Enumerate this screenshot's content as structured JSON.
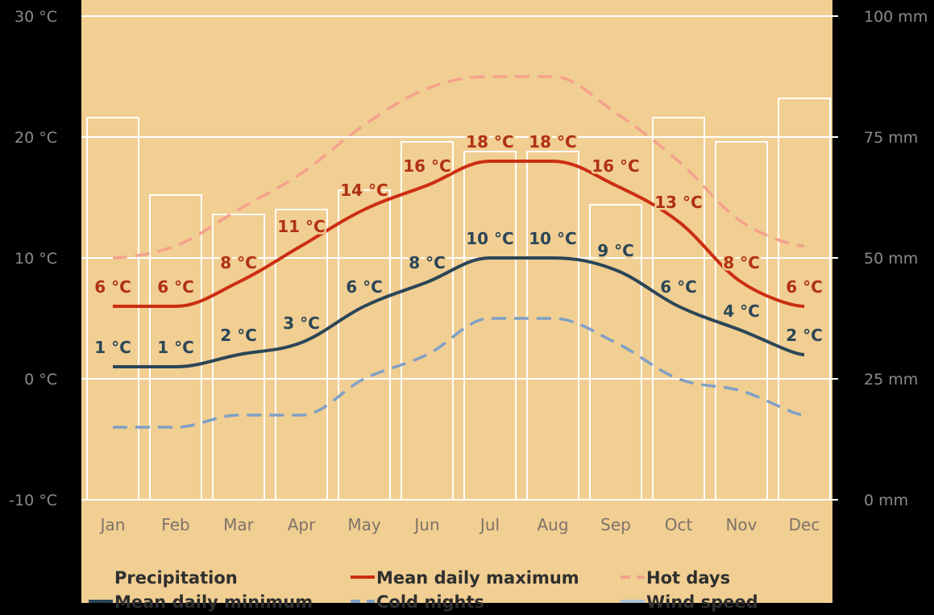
{
  "chart_data": {
    "type": "line",
    "categories": [
      "Jan",
      "Feb",
      "Mar",
      "Apr",
      "May",
      "Jun",
      "Jul",
      "Aug",
      "Sep",
      "Oct",
      "Nov",
      "Dec"
    ],
    "y_left": {
      "ylim": [
        -10,
        30
      ],
      "ticks": [
        -10,
        0,
        10,
        20,
        30
      ],
      "unit": "°C"
    },
    "y_right": {
      "ylim": [
        0,
        100
      ],
      "ticks": [
        0,
        25,
        50,
        75,
        100
      ],
      "unit": "mm"
    },
    "precipitation": {
      "name": "Precipitation",
      "values": [
        79,
        63,
        59,
        60,
        64,
        74,
        72,
        72,
        61,
        79,
        74,
        83
      ]
    },
    "series": [
      {
        "name": "Mean daily maximum",
        "values": [
          6,
          6,
          8,
          11,
          14,
          16,
          18,
          18,
          16,
          13,
          8,
          6
        ],
        "color": "#cc2e12",
        "dash": "solid",
        "labeled": true
      },
      {
        "name": "Hot days",
        "values": [
          10,
          11,
          14,
          17,
          21,
          24,
          25,
          25,
          22,
          18,
          13,
          11
        ],
        "color": "#f4a18c",
        "dash": "dashed",
        "labeled": false
      },
      {
        "name": "Mean daily minimum",
        "values": [
          1,
          1,
          2,
          3,
          6,
          8,
          10,
          10,
          9,
          6,
          4,
          2
        ],
        "color": "#2b4657",
        "dash": "solid",
        "labeled": true
      },
      {
        "name": "Cold nights",
        "values": [
          -4,
          -4,
          -3,
          -3,
          0,
          2,
          5,
          5,
          3,
          0,
          -1,
          -3
        ],
        "color": "#7fa0c5",
        "dash": "dashed",
        "labeled": false
      }
    ],
    "legend": {
      "placement": "bottom",
      "items": [
        {
          "label": "Precipitation",
          "key": "bar"
        },
        {
          "label": "Mean daily maximum",
          "key": "line",
          "color": "#cc2e12",
          "dash": "solid"
        },
        {
          "label": "Hot days",
          "key": "line",
          "color": "#f4a18c",
          "dash": "dashed"
        },
        {
          "label": "Mean daily minimum",
          "key": "line",
          "color": "#2b4657",
          "dash": "solid"
        },
        {
          "label": "Cold nights",
          "key": "line",
          "color": "#7fa0c5",
          "dash": "dashed"
        },
        {
          "label": "Wind speed",
          "key": "line",
          "color": "#aec1d6",
          "dash": "solid"
        }
      ]
    },
    "grid": true,
    "colors": {
      "plot_bg": "#f1ce92",
      "page_bg": "#000000",
      "bar_edge": "#ffffff",
      "grid": "#ffffff"
    }
  }
}
